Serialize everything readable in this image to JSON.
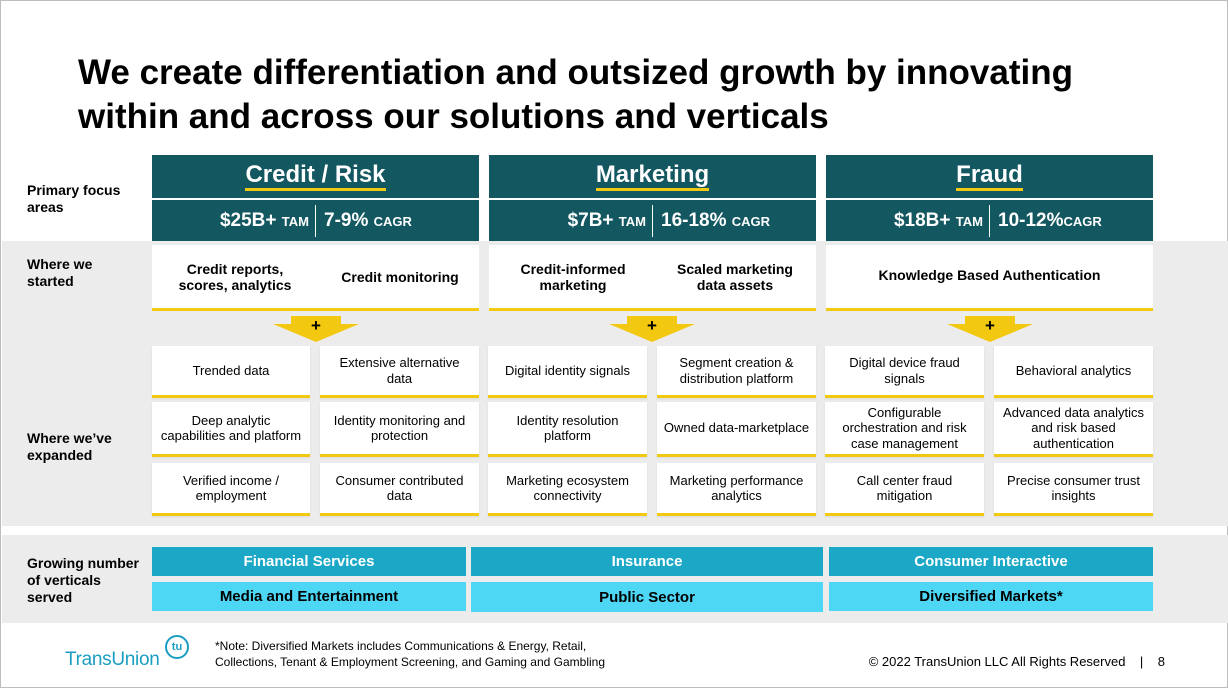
{
  "title": "We create differentiation and outsized growth by innovating within and across our solutions and verticals",
  "row_labels": {
    "primary": "Primary focus areas",
    "started": "Where we started",
    "expanded": "Where we’ve expanded",
    "verticals": "Growing number of verticals served"
  },
  "columns": [
    {
      "name": "Credit / Risk",
      "tam_value": "$25B+",
      "tam_unit": "TAM",
      "cagr_value": "7-9%",
      "cagr_unit": "CAGR",
      "started": [
        "Credit reports, scores, analytics",
        "Credit monitoring"
      ],
      "plus": "+",
      "expanded": [
        [
          "Trended data",
          "Extensive alternative data"
        ],
        [
          "Deep analytic capabilities and platform",
          "Identity monitoring and protection"
        ],
        [
          "Verified income / employment",
          "Consumer contributed data"
        ]
      ]
    },
    {
      "name": "Marketing",
      "tam_value": "$7B+",
      "tam_unit": "TAM",
      "cagr_value": "16-18%",
      "cagr_unit": "CAGR",
      "started": [
        "Credit-informed marketing",
        "Scaled marketing data assets"
      ],
      "plus": "+",
      "expanded": [
        [
          "Digital identity signals",
          "Segment creation & distribution platform"
        ],
        [
          "Identity resolution platform",
          "Owned data-marketplace"
        ],
        [
          "Marketing ecosystem connectivity",
          "Marketing performance analytics"
        ]
      ]
    },
    {
      "name": "Fraud",
      "tam_value": "$18B+",
      "tam_unit": "TAM",
      "cagr_value": "10-12%",
      "cagr_unit": "CAGR",
      "started": [
        "Knowledge Based Authentication"
      ],
      "plus": "+",
      "expanded": [
        [
          "Digital device fraud signals",
          "Behavioral analytics"
        ],
        [
          "Configurable orchestration and risk case management",
          "Advanced data analytics and risk based authentication"
        ],
        [
          "Call center fraud mitigation",
          "Precise consumer trust insights"
        ]
      ]
    }
  ],
  "verticals": {
    "row1": [
      "Financial Services",
      "Insurance",
      "Consumer Interactive"
    ],
    "row2": [
      "Media and Entertainment",
      "Public Sector",
      "Diversified Markets*"
    ]
  },
  "footer": {
    "logo_text": "TransUnion",
    "logo_badge": "tu",
    "note": "*Note: Diversified Markets includes Communications & Energy, Retail, Collections, Tenant & Employment Screening, and Gaming and Gambling",
    "copyright": "© 2022 TransUnion LLC All Rights Reserved",
    "page_number": "8"
  },
  "colors": {
    "header_teal": "#135761",
    "accent_yellow": "#f2c811",
    "vertical_dark": "#1ba8c7",
    "vertical_light": "#4dd7f5",
    "band_gray": "#ececec"
  }
}
